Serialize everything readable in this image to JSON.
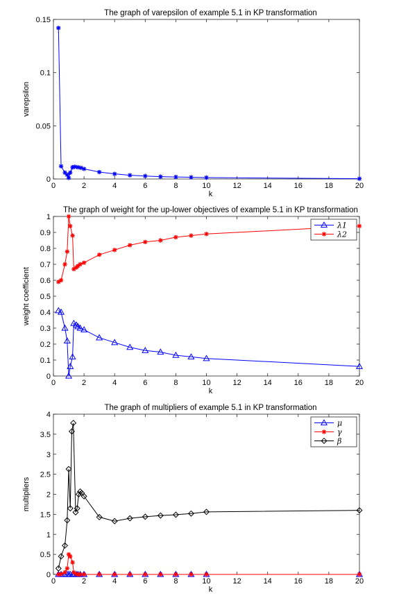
{
  "chart_data": [
    {
      "type": "line",
      "title": "The graph of varepsilon of example 5.1 in KP transformation",
      "xlabel": "k",
      "ylabel": "varepsilon",
      "xlim": [
        0,
        20
      ],
      "ylim": [
        0,
        0.15
      ],
      "xticks": [
        "0",
        "2",
        "4",
        "6",
        "8",
        "10",
        "12",
        "14",
        "16",
        "18",
        "20"
      ],
      "yticks": [
        "0",
        "0.05",
        "0.1",
        "0.15"
      ],
      "grid": false,
      "legend": null,
      "series": [
        {
          "color": "#0000ff",
          "marker": "star",
          "points": [
            [
              0.33,
              0.142
            ],
            [
              0.5,
              0.012
            ],
            [
              0.75,
              0.006
            ],
            [
              0.9,
              0.004
            ],
            [
              1.0,
              0.001
            ],
            [
              1.1,
              0.006
            ],
            [
              1.25,
              0.011
            ],
            [
              1.4,
              0.0115
            ],
            [
              1.6,
              0.011
            ],
            [
              1.8,
              0.0105
            ],
            [
              2.0,
              0.0095
            ],
            [
              3,
              0.0065
            ],
            [
              4,
              0.0048
            ],
            [
              5,
              0.0035
            ],
            [
              6,
              0.0028
            ],
            [
              7,
              0.0022
            ],
            [
              8,
              0.0019
            ],
            [
              9,
              0.0016
            ],
            [
              10,
              0.0013
            ],
            [
              20,
              0.0003
            ]
          ]
        }
      ]
    },
    {
      "type": "line",
      "title": "The graph of weight for the up-lower objectives of example 5.1 in KP transformation",
      "xlabel": "k",
      "ylabel": "weight coefficient",
      "xlim": [
        0,
        20
      ],
      "ylim": [
        0,
        1
      ],
      "xticks": [
        "0",
        "2",
        "4",
        "6",
        "8",
        "10",
        "12",
        "14",
        "16",
        "18",
        "20"
      ],
      "yticks": [
        "0",
        "0.1",
        "0.2",
        "0.3",
        "0.4",
        "0.5",
        "0.6",
        "0.7",
        "0.8",
        "0.9",
        "1"
      ],
      "grid": false,
      "legend": "top-right",
      "series": [
        {
          "name": "λ1",
          "color": "#0000ff",
          "marker": "triangle",
          "points": [
            [
              0.33,
              0.41
            ],
            [
              0.5,
              0.4
            ],
            [
              0.75,
              0.3
            ],
            [
              0.9,
              0.22
            ],
            [
              1.0,
              0.0
            ],
            [
              1.1,
              0.06
            ],
            [
              1.25,
              0.12
            ],
            [
              1.33,
              0.33
            ],
            [
              1.5,
              0.32
            ],
            [
              1.6,
              0.31
            ],
            [
              1.75,
              0.3
            ],
            [
              2.0,
              0.29
            ],
            [
              3,
              0.24
            ],
            [
              4,
              0.21
            ],
            [
              5,
              0.18
            ],
            [
              6,
              0.16
            ],
            [
              7,
              0.15
            ],
            [
              8,
              0.13
            ],
            [
              9,
              0.12
            ],
            [
              10,
              0.11
            ],
            [
              20,
              0.06
            ]
          ]
        },
        {
          "name": "λ2",
          "color": "#ff0000",
          "marker": "star",
          "points": [
            [
              0.33,
              0.59
            ],
            [
              0.5,
              0.6
            ],
            [
              0.75,
              0.7
            ],
            [
              0.9,
              0.78
            ],
            [
              1.0,
              1.0
            ],
            [
              1.1,
              0.94
            ],
            [
              1.25,
              0.88
            ],
            [
              1.33,
              0.67
            ],
            [
              1.5,
              0.68
            ],
            [
              1.6,
              0.69
            ],
            [
              1.75,
              0.7
            ],
            [
              2.0,
              0.71
            ],
            [
              3,
              0.76
            ],
            [
              4,
              0.79
            ],
            [
              5,
              0.82
            ],
            [
              6,
              0.84
            ],
            [
              7,
              0.85
            ],
            [
              8,
              0.87
            ],
            [
              9,
              0.88
            ],
            [
              10,
              0.89
            ],
            [
              20,
              0.94
            ]
          ]
        }
      ]
    },
    {
      "type": "line",
      "title": "The graph of multipliers of example 5.1 in KP transformation",
      "xlabel": "k",
      "ylabel": "multipliers",
      "xlim": [
        0,
        20
      ],
      "ylim": [
        0,
        4
      ],
      "xticks": [
        "0",
        "2",
        "4",
        "6",
        "8",
        "10",
        "12",
        "14",
        "16",
        "18",
        "20"
      ],
      "yticks": [
        "0",
        "0.5",
        "1",
        "1.5",
        "2",
        "2.5",
        "3",
        "3.5",
        "4"
      ],
      "grid": false,
      "legend": "top-right",
      "series": [
        {
          "name": "μ",
          "color": "#0000ff",
          "marker": "triangle",
          "points": [
            [
              0.33,
              0
            ],
            [
              0.5,
              0
            ],
            [
              0.75,
              0
            ],
            [
              0.9,
              0
            ],
            [
              1.0,
              0
            ],
            [
              1.1,
              0
            ],
            [
              1.25,
              0
            ],
            [
              1.33,
              0
            ],
            [
              1.5,
              0
            ],
            [
              1.6,
              0
            ],
            [
              1.75,
              0
            ],
            [
              2.0,
              0
            ],
            [
              3,
              0
            ],
            [
              4,
              0
            ],
            [
              5,
              0
            ],
            [
              6,
              0
            ],
            [
              7,
              0
            ],
            [
              8,
              0
            ],
            [
              9,
              0
            ],
            [
              10,
              0
            ],
            [
              20,
              0
            ]
          ]
        },
        {
          "name": "γ",
          "color": "#ff0000",
          "marker": "star",
          "points": [
            [
              0.33,
              0
            ],
            [
              0.5,
              0.01
            ],
            [
              0.75,
              0.05
            ],
            [
              0.9,
              0.15
            ],
            [
              1.0,
              0.5
            ],
            [
              1.1,
              0.45
            ],
            [
              1.25,
              0.3
            ],
            [
              1.33,
              0.05
            ],
            [
              1.5,
              0.01
            ],
            [
              1.6,
              0
            ],
            [
              1.75,
              0
            ],
            [
              2.0,
              0
            ],
            [
              3,
              0
            ],
            [
              4,
              0
            ],
            [
              5,
              0
            ],
            [
              6,
              0
            ],
            [
              7,
              0
            ],
            [
              8,
              0
            ],
            [
              9,
              0
            ],
            [
              10,
              0
            ],
            [
              20,
              0
            ]
          ]
        },
        {
          "name": "β",
          "color": "#000000",
          "marker": "diamond",
          "points": [
            [
              0.33,
              0.15
            ],
            [
              0.5,
              0.45
            ],
            [
              0.75,
              0.72
            ],
            [
              0.9,
              1.35
            ],
            [
              1.0,
              2.63
            ],
            [
              1.1,
              1.65
            ],
            [
              1.2,
              3.57
            ],
            [
              1.3,
              3.78
            ],
            [
              1.45,
              1.55
            ],
            [
              1.55,
              1.65
            ],
            [
              1.65,
              2.0
            ],
            [
              1.75,
              2.07
            ],
            [
              1.85,
              2.03
            ],
            [
              2.0,
              1.95
            ],
            [
              3,
              1.43
            ],
            [
              4,
              1.33
            ],
            [
              5,
              1.4
            ],
            [
              6,
              1.44
            ],
            [
              7,
              1.47
            ],
            [
              8,
              1.49
            ],
            [
              9,
              1.52
            ],
            [
              10,
              1.56
            ],
            [
              20,
              1.6
            ]
          ]
        }
      ]
    }
  ]
}
